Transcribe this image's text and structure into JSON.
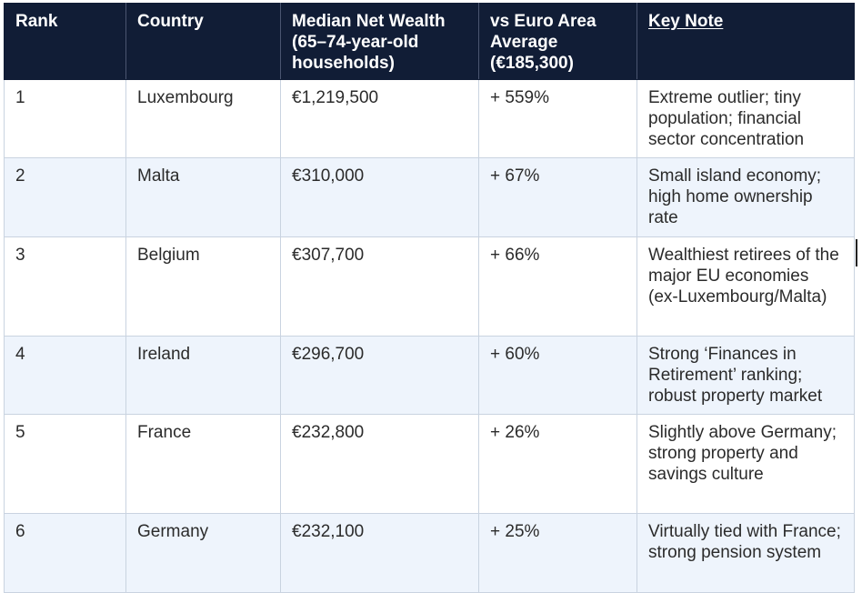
{
  "table": {
    "headers": {
      "rank": "Rank",
      "country": "Country",
      "wealth_line1": "Median Net Wealth",
      "wealth_line2": "(65–74-year-old",
      "wealth_line3": "households)",
      "vs_line1": "vs Euro Area",
      "vs_line2": "Average",
      "vs_line3": "(€185,300)",
      "note": "Key Note"
    },
    "rows": [
      {
        "rank": "1",
        "country": "Luxembourg",
        "wealth": "€1,219,500",
        "vs": "+ 559%",
        "note": "Extreme outlier; tiny population; financial sector concentration"
      },
      {
        "rank": "2",
        "country": "Malta",
        "wealth": "€310,000",
        "vs": "+ 67%",
        "note": "Small island economy; high home ownership rate"
      },
      {
        "rank": "3",
        "country": "Belgium",
        "wealth": "€307,700",
        "vs": "+ 66%",
        "note": "Wealthiest retirees of the major EU economies (ex-Luxembourg/Malta)"
      },
      {
        "rank": "4",
        "country": "Ireland",
        "wealth": "€296,700",
        "vs": "+ 60%",
        "note": "Strong ‘Finances in Retirement’ ranking; robust property market"
      },
      {
        "rank": "5",
        "country": "France",
        "wealth": "€232,800",
        "vs": "+ 26%",
        "note": "Slightly above Germany; strong property and savings culture"
      },
      {
        "rank": "6",
        "country": "Germany",
        "wealth": "€232,100",
        "vs": "+ 25%",
        "note": "Virtually tied with France; strong pension system"
      }
    ]
  },
  "colors": {
    "header_bg": "#111d36",
    "header_text": "#ffffff",
    "row_alt_bg": "#eef4fc",
    "border": "#c9d3e0"
  }
}
